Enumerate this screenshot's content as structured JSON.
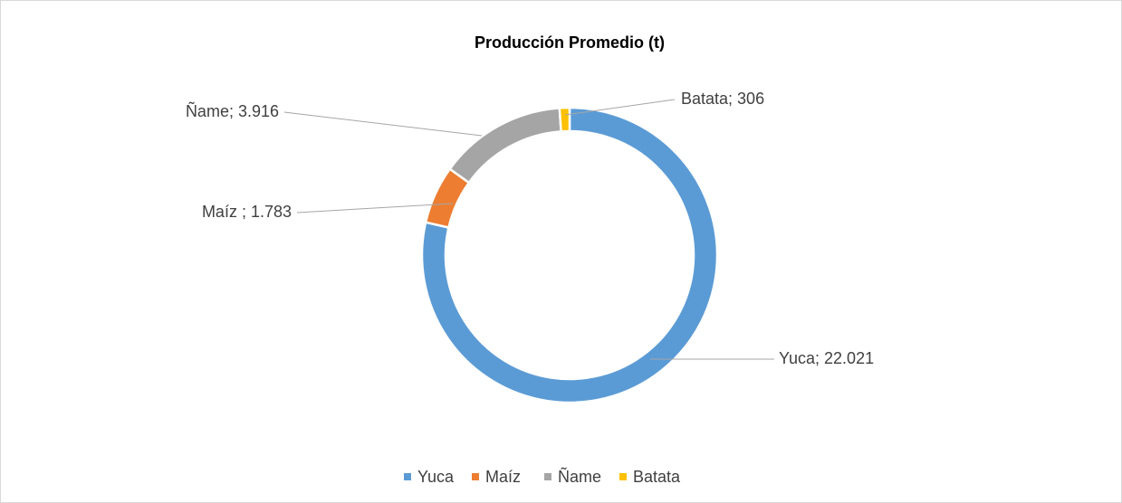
{
  "chart_data": {
    "type": "donut",
    "title": "Producción Promedio (t)",
    "categories": [
      "Yuca",
      "Maíz",
      "Ñame",
      "Batata"
    ],
    "values": [
      22021,
      1783,
      3916,
      306
    ],
    "value_labels": [
      "Yuca; 22.021",
      "Maíz ; 1.783",
      "Ñame; 3.916",
      "Batata; 306"
    ],
    "colors": [
      "#5b9bd5",
      "#ed7d31",
      "#a5a5a5",
      "#ffc000"
    ],
    "legend": "bottom"
  }
}
